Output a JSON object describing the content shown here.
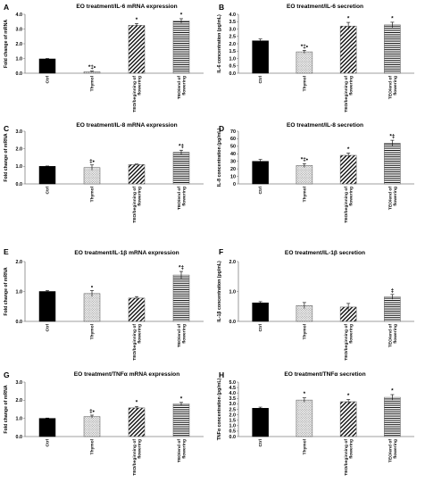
{
  "colors": {
    "ctrl": "#000000",
    "thymol": "#d0d0d0",
    "teo_begin": "#ffffff",
    "teo_end": "#ffffff",
    "axis": "#7f7f7f"
  },
  "categories": [
    "Ctrl",
    "Thymol",
    "TEO/beginning of flowering",
    "TEO/end of flowering"
  ],
  "chart_data": [
    {
      "letter": "A",
      "type": "bar",
      "title": "EO treatment/IL-6 mRNA expression",
      "xlabel": "",
      "ylabel": "Fold change of mRNA",
      "ylim": [
        0,
        4
      ],
      "yticks": [
        "0.0",
        "1.0",
        "2.0",
        "3.0",
        "4.0"
      ],
      "categories": [
        "Ctrl",
        "Thymol",
        "TEO/beginning of flowering",
        "TEO/end of flowering"
      ],
      "values": [
        0.97,
        0.1,
        3.25,
        3.55
      ],
      "errors": [
        0.03,
        0.04,
        0.12,
        0.15
      ],
      "labels": [
        "",
        "*‡•",
        "*",
        "*"
      ]
    },
    {
      "letter": "B",
      "type": "bar",
      "title": "EO treatment/IL-6 secretion",
      "xlabel": "",
      "ylabel": "IL-6 concentration (pg/mL)",
      "ylim": [
        0,
        4
      ],
      "yticks": [
        "0.0",
        "0.5",
        "1.0",
        "1.5",
        "2.0",
        "2.5",
        "3.0",
        "3.5",
        "4.0"
      ],
      "categories": [
        "Ctrl",
        "Thymol",
        "TEO/beginning of flowering",
        "TEO/end of flowering"
      ],
      "values": [
        2.2,
        1.45,
        3.2,
        3.28
      ],
      "errors": [
        0.12,
        0.1,
        0.25,
        0.18
      ],
      "labels": [
        "",
        "*‡•",
        "*",
        "*"
      ]
    },
    {
      "letter": "C",
      "type": "bar",
      "title": "EO treatment/IL-8 mRNA expression",
      "xlabel": "",
      "ylabel": "Fold change of mRNA",
      "ylim": [
        0,
        3
      ],
      "yticks": [
        "0.0",
        "1.0",
        "2.0",
        "3.0"
      ],
      "categories": [
        "Ctrl",
        "Thymol",
        "TEO/beginning of flowering",
        "TEO/end of flowering"
      ],
      "values": [
        1.0,
        0.93,
        1.1,
        1.8
      ],
      "errors": [
        0.02,
        0.15,
        0.03,
        0.12
      ],
      "labels": [
        "",
        "‡•",
        "",
        "*‡"
      ]
    },
    {
      "letter": "D",
      "type": "bar",
      "title": "EO treatment/IL-8 secretion",
      "xlabel": "",
      "ylabel": "IL-8 concentration (pg/mL)",
      "ylim": [
        0,
        70
      ],
      "yticks": [
        "0",
        "10",
        "20",
        "30",
        "40",
        "50",
        "60",
        "70"
      ],
      "categories": [
        "Ctrl",
        "Thymol",
        "TEO/beginning of flowering",
        "TEO/end of flowering"
      ],
      "values": [
        30,
        24.5,
        38,
        54
      ],
      "errors": [
        2.5,
        2.5,
        3.0,
        4.0
      ],
      "labels": [
        "",
        "*‡•",
        "*",
        "*‡"
      ]
    },
    {
      "letter": "E",
      "type": "bar",
      "title": "EO treatment/IL-1β mRNA expression",
      "xlabel": "",
      "ylabel": "Fold change of mRNA",
      "ylim": [
        0,
        2
      ],
      "yticks": [
        "0.0",
        "1.0",
        "2.0"
      ],
      "categories": [
        "Ctrl",
        "Thymol",
        "TEO/beginning of flowering",
        "TEO/end of flowering"
      ],
      "values": [
        1.0,
        0.93,
        0.78,
        1.55
      ],
      "errors": [
        0.03,
        0.1,
        0.05,
        0.12
      ],
      "labels": [
        "",
        "•",
        "",
        "*‡"
      ]
    },
    {
      "letter": "F",
      "type": "bar",
      "title": "EO treatment/IL-1β secretion",
      "xlabel": "",
      "ylabel": "IL-1β concentration (pg/mL)",
      "ylim": [
        0,
        2
      ],
      "yticks": [
        "0.0",
        "1.0",
        "2.0"
      ],
      "categories": [
        "Ctrl",
        "Thymol",
        "TEO/beginning of flowering",
        "TEO/end of flowering"
      ],
      "values": [
        0.62,
        0.53,
        0.48,
        0.82
      ],
      "errors": [
        0.04,
        0.1,
        0.12,
        0.08
      ],
      "labels": [
        "",
        "",
        "",
        "‡"
      ]
    },
    {
      "letter": "G",
      "type": "bar",
      "title": "EO treatment/TNFα mRNA expression",
      "xlabel": "",
      "ylabel": "Fold change of mRNA",
      "ylim": [
        0,
        3
      ],
      "yticks": [
        "0.0",
        "1.0",
        "2.0",
        "3.0"
      ],
      "categories": [
        "Ctrl",
        "Thymol",
        "TEO/beginning of flowering",
        "TEO/end of flowering"
      ],
      "values": [
        1.0,
        1.1,
        1.58,
        1.8
      ],
      "errors": [
        0.02,
        0.08,
        0.08,
        0.08
      ],
      "labels": [
        "",
        "‡•",
        "*",
        "*"
      ]
    },
    {
      "letter": "H",
      "type": "bar",
      "title": "EO treatment/TNFα secretion",
      "xlabel": "",
      "ylabel": "TNFα concentration (pg/mL)",
      "ylim": [
        0,
        5
      ],
      "yticks": [
        "0.0",
        "0.5",
        "1.0",
        "1.5",
        "2.0",
        "2.5",
        "3.0",
        "3.5",
        "4.0",
        "4.5",
        "5.0"
      ],
      "categories": [
        "Ctrl",
        "Thymol",
        "TEO/beginning of flowering",
        "TEO/end of flowering"
      ],
      "values": [
        2.6,
        3.35,
        3.2,
        3.6
      ],
      "errors": [
        0.1,
        0.2,
        0.2,
        0.25
      ],
      "labels": [
        "",
        "*",
        "*",
        "*"
      ]
    }
  ]
}
